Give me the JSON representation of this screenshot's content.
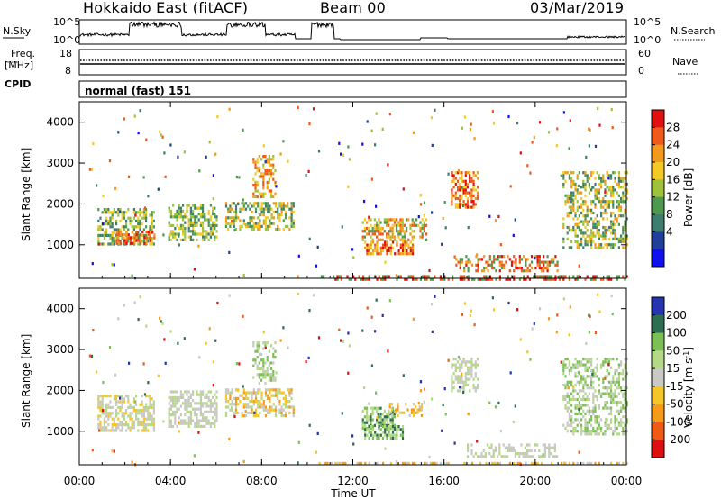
{
  "header": {
    "station": "Hokkaido East (fitACF)",
    "beam": "Beam 00",
    "date": "03/Mar/2019"
  },
  "left_labels": {
    "nsky": "N.Sky",
    "freq": "Freq.",
    "freq_unit": "[MHz]",
    "cpid": "CPID"
  },
  "right_labels": {
    "nsearch": "N.Search",
    "nave": "Nave"
  },
  "panels": {
    "noise": {
      "left_ticks": [
        "10^5",
        "10^0"
      ],
      "right_ticks": [
        "10^5",
        "10^0"
      ]
    },
    "freq": {
      "left_ticks": [
        "18",
        "8"
      ],
      "right_ticks": [
        "60",
        "0"
      ]
    },
    "cpid_text": "normal (fast) 151"
  },
  "colorbars": {
    "power": {
      "label": "Power [dB]",
      "ticks": [
        "28",
        "24",
        "20",
        "16",
        "12",
        "8",
        "4"
      ],
      "colors": [
        "#e01010",
        "#ef5a1a",
        "#f39a1c",
        "#f5c925",
        "#9fc23c",
        "#4e9850",
        "#3f7d6e",
        "#1f3f9a",
        "#1010ee"
      ]
    },
    "velocity": {
      "label": "Velocity [m s",
      "label_sup": "-1",
      "label_end": "]",
      "ticks": [
        "200",
        "100",
        "50",
        "15",
        "-15",
        "-50",
        "-100",
        "-200"
      ],
      "colors": [
        "#2535b0",
        "#2e6e50",
        "#7cc055",
        "#b5d886",
        "#c8c8c4",
        "#f4c62a",
        "#f59a19",
        "#ef5a14",
        "#dc1010"
      ]
    }
  },
  "chart_data": [
    {
      "type": "heatmap",
      "title": "Power",
      "xlabel": "Time UT",
      "ylabel": "Slant Range [km]",
      "x_ticks": [
        "00:00",
        "04:00",
        "08:00",
        "12:00",
        "16:00",
        "20:00",
        "00:00"
      ],
      "y_ticks": [
        "1000",
        "2000",
        "3000",
        "4000"
      ],
      "xlim_hours": [
        0,
        24
      ],
      "ylim_km": [
        180,
        4500
      ],
      "colorbar": "Power [dB]",
      "regions": [
        {
          "t": [
            0.8,
            3.3
          ],
          "r": [
            1050,
            1900
          ],
          "level": "8-20 dB"
        },
        {
          "t": [
            3.9,
            6.0
          ],
          "r": [
            1100,
            2000
          ],
          "level": "8-16 dB"
        },
        {
          "t": [
            6.4,
            9.4
          ],
          "r": [
            1400,
            3200
          ],
          "level": "8-24 dB"
        },
        {
          "t": [
            12.4,
            15.2
          ],
          "r": [
            780,
            1650
          ],
          "level": "12-28 dB"
        },
        {
          "t": [
            16.3,
            17.5
          ],
          "r": [
            1900,
            2800
          ],
          "level": "12-28 dB"
        },
        {
          "t": [
            16.5,
            21.0
          ],
          "r": [
            350,
            750
          ],
          "level": "12-28 dB"
        },
        {
          "t": [
            21.2,
            24.0
          ],
          "r": [
            950,
            2800
          ],
          "level": "8-24 dB"
        }
      ]
    },
    {
      "type": "heatmap",
      "title": "Velocity",
      "xlabel": "Time UT",
      "ylabel": "Slant Range [km]",
      "x_ticks": [
        "00:00",
        "04:00",
        "08:00",
        "12:00",
        "16:00",
        "20:00",
        "00:00"
      ],
      "y_ticks": [
        "1000",
        "2000",
        "3000",
        "4000"
      ],
      "xlim_hours": [
        0,
        24
      ],
      "ylim_km": [
        180,
        4500
      ],
      "colorbar": "Velocity [m s-1]",
      "regions": [
        {
          "t": [
            0.8,
            3.3
          ],
          "r": [
            1050,
            1900
          ],
          "level": "-15 to 15"
        },
        {
          "t": [
            3.9,
            6.0
          ],
          "r": [
            1100,
            2000
          ],
          "level": "-15 to 15"
        },
        {
          "t": [
            6.4,
            9.4
          ],
          "r": [
            1400,
            3200
          ],
          "level": "-15 to 50"
        },
        {
          "t": [
            12.4,
            13.8
          ],
          "r": [
            1100,
            1600
          ],
          "level": "15 to 50"
        },
        {
          "t": [
            12.5,
            14.2
          ],
          "r": [
            800,
            1150
          ],
          "level": "15 to 100"
        },
        {
          "t": [
            13.5,
            15.0
          ],
          "r": [
            1400,
            1700
          ],
          "level": "-50 to -15"
        },
        {
          "t": [
            16.3,
            17.5
          ],
          "r": [
            2000,
            2800
          ],
          "level": "-15 to 15"
        },
        {
          "t": [
            17.0,
            21.0
          ],
          "r": [
            350,
            700
          ],
          "level": "-15 to 15"
        },
        {
          "t": [
            21.2,
            24.0
          ],
          "r": [
            950,
            2800
          ],
          "level": "-15 to 50"
        },
        {
          "t": [
            10.5,
            24.0
          ],
          "r": [
            180,
            250
          ],
          "level": "-50 to -15"
        }
      ]
    }
  ]
}
